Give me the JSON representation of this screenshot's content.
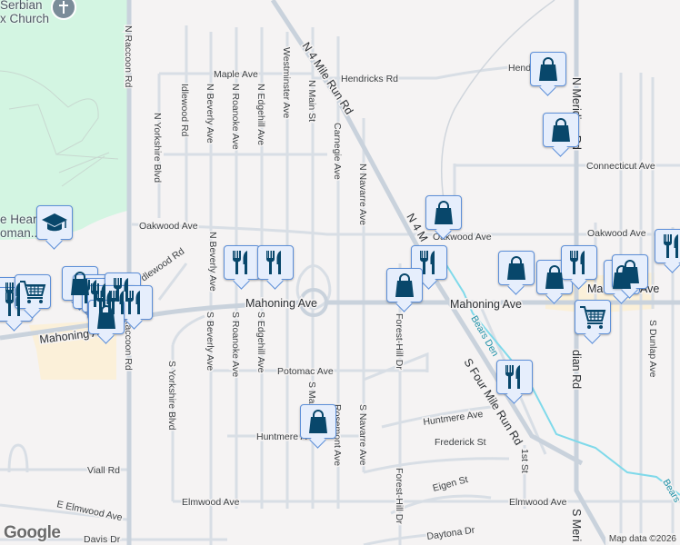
{
  "map": {
    "colors": {
      "background": "#f5f3f3",
      "park": "#d3f5e2",
      "commercial": "#fbf0d9",
      "road": "#d5dce3",
      "major_road": "#c9d2dc",
      "water": "#7fd9ea",
      "marker_fill": "#e6eefc",
      "marker_border": "#5d8fd8",
      "icon": "#08476b"
    },
    "poi_labels": {
      "church_line1": "Serbian",
      "church_line2": "x Church",
      "school_line1": "e Heart",
      "school_line2": "oman.."
    },
    "streets": {
      "n_raccoon": "N Raccoon Rd",
      "s_raccoon": "S Raccoon Rd",
      "maple": "Maple Ave",
      "hendricks": "Hendricks Rd",
      "hendricks2": "Hend",
      "n_yorkshire": "N Yorkshire Blvd",
      "idlewood": "Idlewood Rd",
      "idlewood2": "dlewood Rd",
      "n_beverly": "N Beverly Ave",
      "n_beverly2": "N Beverly Ave",
      "n_roanoke": "N Roanoke Ave",
      "n_edgehill": "N Edgehill Ave",
      "westminster": "Westminster Ave",
      "n_main": "N Main St",
      "carnegie": "Carnegie Ave",
      "n_navarre": "N Navarre Ave",
      "n_4mile": "N 4 Mile Run Rd",
      "n_4mile2": "N 4 M",
      "n_meridian": "N Meridian Rd",
      "connecticut": "Connecticut Ave",
      "oakwood1": "Oakwood Ave",
      "oakwood2": "Oakwood Ave",
      "oakwood3": "Oakwood Ave",
      "mahoning1": "Mahoning Ave",
      "mahoning2": "Mahoning Ave",
      "mahoning3": "Mahoning Ave",
      "mahoning4": "Ma",
      "mahoning5": "Ave",
      "s_beverly": "S Beverly Ave",
      "s_roanoke": "S Roanoke Ave",
      "s_edgehill": "S Edgehill Ave",
      "s_yorkshire": "S Yorkshire Blvd",
      "potomac": "Potomac Ave",
      "s_main": "S Ma",
      "huntmere1": "Huntmere A",
      "rosemont": "Rosemont Ave",
      "s_navarre": "S Navarre Ave",
      "forest_hill1": "Forest-Hill Dr",
      "forest_hill2": "Forest-Hill Dr",
      "s_four_mile": "S Four Mile Run Rd",
      "huntmere2": "Huntmere Ave",
      "frederick": "Frederick St",
      "first_st": "1st St",
      "eigen": "Eigen St",
      "elmwood1": "Elmwood Ave",
      "elmwood2": "Elmwood Ave",
      "e_elmwood": "E Elmwood Ave",
      "viall": "Viall Rd",
      "davis": "Davis Dr",
      "daytona": "Daytona Dr",
      "s_meridian": "S Meri",
      "s_meridian2": "dian Rd",
      "s_dunlap": "S Dunlap Ave",
      "bears_den1": "Bears Den",
      "bears_den2": "Bears"
    },
    "markers": [
      "restaurant",
      "restaurant",
      "shopping",
      "restaurant",
      "cart",
      "restaurant",
      "restaurant",
      "restaurant",
      "restaurant",
      "restaurant",
      "shopping",
      "restaurant",
      "restaurant",
      "education",
      "shopping",
      "shopping",
      "shopping",
      "restaurant",
      "shopping",
      "shopping",
      "shopping",
      "restaurant",
      "shopping",
      "shopping",
      "restaurant",
      "cart",
      "restaurant",
      "shopping"
    ],
    "church_icon": "cross-icon",
    "logo": "Google",
    "attribution": "Map data ©2026"
  }
}
